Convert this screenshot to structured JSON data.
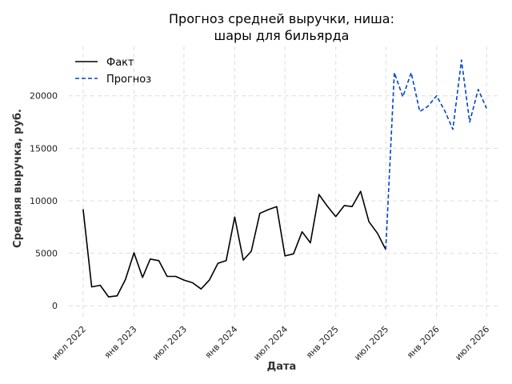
{
  "chart_data": {
    "type": "line",
    "title": [
      "Прогноз средней выручки, ниша:",
      "шары для бильярда"
    ],
    "xlabel": "Дата",
    "ylabel": "Средняя выручка, руб.",
    "ylim": [
      -1200,
      24700
    ],
    "xlim": [
      "2022-05-10",
      "2026-08-10"
    ],
    "grid": true,
    "legend_position": "top-left",
    "x_tick_labels": [
      {
        "date": "2022-07-01",
        "label": "июл 2022"
      },
      {
        "date": "2023-01-01",
        "label": "янв 2023"
      },
      {
        "date": "2023-07-01",
        "label": "июл 2023"
      },
      {
        "date": "2024-01-01",
        "label": "янв 2024"
      },
      {
        "date": "2024-07-01",
        "label": "июл 2024"
      },
      {
        "date": "2025-01-01",
        "label": "янв 2025"
      },
      {
        "date": "2025-07-01",
        "label": "июл 2025"
      },
      {
        "date": "2026-01-01",
        "label": "янв 2026"
      },
      {
        "date": "2026-07-01",
        "label": "июл 2026"
      }
    ],
    "y_ticks": [
      0,
      5000,
      10000,
      15000,
      20000
    ],
    "y_tick_labels": [
      "0",
      "5000",
      "10000",
      "15000",
      "20000"
    ],
    "series": [
      {
        "name": "Факт",
        "color": "#000000",
        "style": "solid",
        "x": [
          "2022-07-01",
          "2022-08-01",
          "2022-09-01",
          "2022-10-01",
          "2022-11-01",
          "2022-12-01",
          "2023-01-01",
          "2023-02-01",
          "2023-03-01",
          "2023-04-01",
          "2023-05-01",
          "2023-06-01",
          "2023-07-01",
          "2023-08-01",
          "2023-09-01",
          "2023-10-01",
          "2023-11-01",
          "2023-12-01",
          "2024-01-01",
          "2024-02-01",
          "2024-03-01",
          "2024-04-01",
          "2024-05-01",
          "2024-06-01",
          "2024-07-01",
          "2024-08-01",
          "2024-09-01",
          "2024-10-01",
          "2024-11-01",
          "2024-12-01",
          "2025-01-01",
          "2025-02-01",
          "2025-03-01",
          "2025-04-01",
          "2025-05-01",
          "2025-06-01",
          "2025-07-01"
        ],
        "values": [
          9200,
          1800,
          1950,
          850,
          950,
          2500,
          5050,
          2700,
          4450,
          4300,
          2800,
          2800,
          2450,
          2200,
          1600,
          2450,
          4050,
          4300,
          8450,
          4350,
          5200,
          8800,
          9150,
          9450,
          4750,
          4950,
          7050,
          6000,
          10600,
          9500,
          8500,
          9550,
          9450,
          10900,
          8000,
          6900,
          5350
        ]
      },
      {
        "name": "Прогноз",
        "color": "#0044cc",
        "style": "dashed",
        "x": [
          "2025-07-01",
          "2025-08-01",
          "2025-09-01",
          "2025-10-01",
          "2025-11-01",
          "2025-12-01",
          "2026-01-01",
          "2026-02-01",
          "2026-03-01",
          "2026-04-01",
          "2026-05-01",
          "2026-06-01",
          "2026-07-01"
        ],
        "values": [
          5350,
          22200,
          19900,
          22200,
          18500,
          19000,
          20000,
          18500,
          16800,
          23400,
          17500,
          20600,
          18800
        ]
      }
    ]
  }
}
